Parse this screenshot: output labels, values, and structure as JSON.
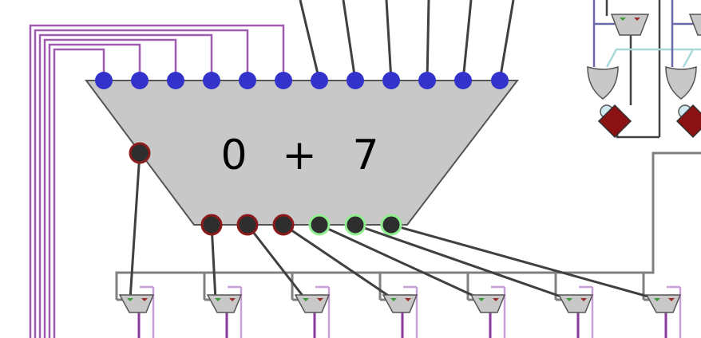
{
  "adder": {
    "operand_a": "0",
    "operator": "+",
    "operand_b": "7"
  },
  "colors": {
    "body_fill": "#c8c8c8",
    "body_stroke": "#555555",
    "input_pin": "#3333cc",
    "output_pin_dark": "#2e2e2e",
    "output_pin_ring_red": "#8b1a1a",
    "output_pin_ring_green": "#90ee90",
    "bus_wire": "#a05cb0",
    "signal_wire": "#404040",
    "grey_wire": "#808080",
    "register_red": "#8b1212",
    "light_blue_wire": "#a8d8d8"
  }
}
